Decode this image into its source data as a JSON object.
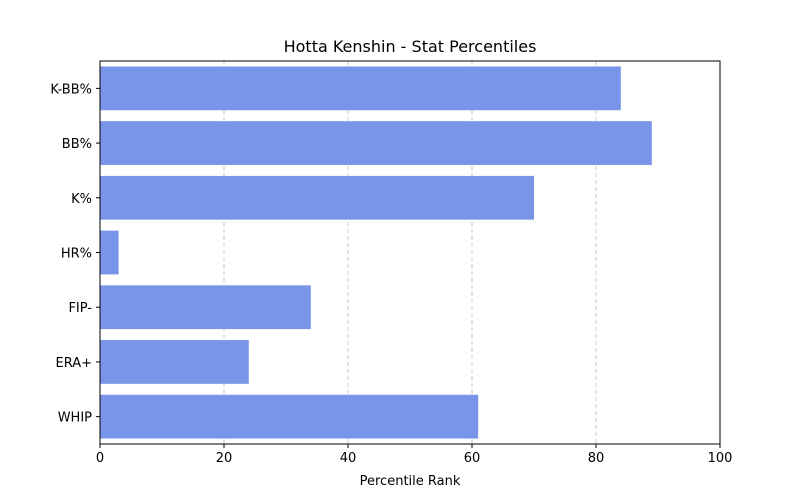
{
  "chart_data": {
    "type": "bar",
    "orientation": "horizontal",
    "title": "Hotta Kenshin - Stat Percentiles",
    "xlabel": "Percentile Rank",
    "ylabel": "",
    "categories": [
      "K-BB%",
      "BB%",
      "K%",
      "HR%",
      "FIP-",
      "ERA+",
      "WHIP"
    ],
    "values": [
      84,
      89,
      70,
      3,
      34,
      24,
      61
    ],
    "xlim": [
      0,
      100
    ],
    "xticks": [
      0,
      20,
      40,
      60,
      80,
      100
    ],
    "grid": "x-dashed",
    "colors": {
      "bar": "#7995e9",
      "grid": "#c8c8c8",
      "axis": "#000000"
    }
  }
}
